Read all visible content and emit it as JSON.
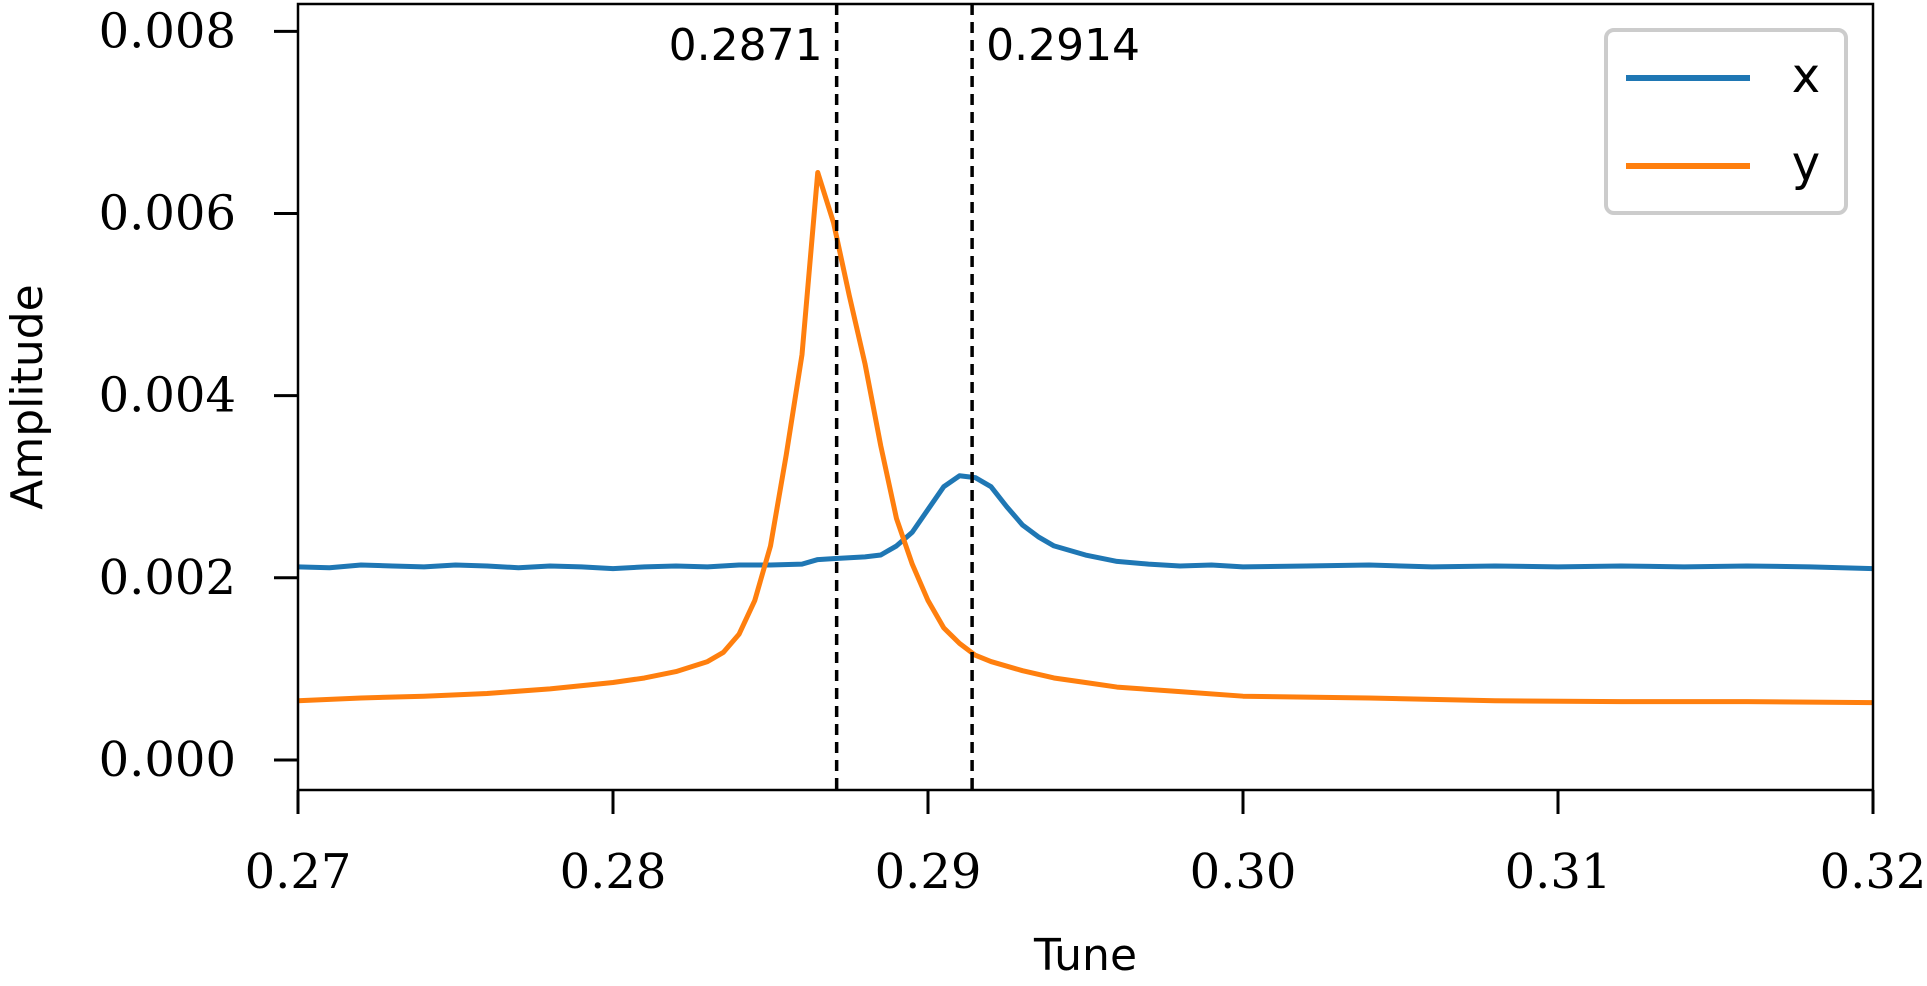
{
  "chart_data": {
    "type": "line",
    "xlabel": "Tune",
    "ylabel": "Amplitude",
    "xlim": [
      0.27,
      0.32
    ],
    "ylim": [
      -0.00033,
      0.0083
    ],
    "x_ticks": [
      "0.27",
      "0.28",
      "0.29",
      "0.30",
      "0.31",
      "0.32"
    ],
    "y_ticks": [
      "0.000",
      "0.002",
      "0.004",
      "0.006",
      "0.008"
    ],
    "x_tick_values": [
      0.27,
      0.28,
      0.29,
      0.3,
      0.31,
      0.32
    ],
    "y_tick_values": [
      0.0,
      0.002,
      0.004,
      0.006,
      0.008
    ],
    "grid": false,
    "legend": {
      "placement": "top-right",
      "entries": [
        "x",
        "y"
      ]
    },
    "vlines": [
      {
        "x": 0.2871,
        "label": "0.2871",
        "label_side": "left",
        "style": "dashed"
      },
      {
        "x": 0.2914,
        "label": "0.2914",
        "label_side": "right",
        "style": "dashed"
      }
    ],
    "series": [
      {
        "name": "x",
        "color": "#1f77b4",
        "x": [
          0.27,
          0.271,
          0.272,
          0.273,
          0.274,
          0.275,
          0.276,
          0.277,
          0.278,
          0.279,
          0.28,
          0.281,
          0.282,
          0.283,
          0.284,
          0.285,
          0.286,
          0.2865,
          0.287,
          0.2875,
          0.288,
          0.2885,
          0.289,
          0.2895,
          0.29,
          0.2905,
          0.291,
          0.2915,
          0.292,
          0.2925,
          0.293,
          0.2935,
          0.294,
          0.295,
          0.296,
          0.297,
          0.298,
          0.299,
          0.3,
          0.302,
          0.304,
          0.306,
          0.308,
          0.31,
          0.312,
          0.314,
          0.316,
          0.318,
          0.32
        ],
        "y": [
          0.00212,
          0.00211,
          0.00214,
          0.00213,
          0.00212,
          0.00214,
          0.00213,
          0.00211,
          0.00213,
          0.00212,
          0.0021,
          0.00212,
          0.00213,
          0.00212,
          0.00214,
          0.00214,
          0.00215,
          0.0022,
          0.00221,
          0.00222,
          0.00223,
          0.00225,
          0.00235,
          0.0025,
          0.00275,
          0.003,
          0.00312,
          0.0031,
          0.003,
          0.00278,
          0.00258,
          0.00245,
          0.00235,
          0.00225,
          0.00218,
          0.00215,
          0.00213,
          0.00214,
          0.00212,
          0.00213,
          0.00214,
          0.00212,
          0.00213,
          0.00212,
          0.00213,
          0.00212,
          0.00213,
          0.00212,
          0.0021
        ]
      },
      {
        "name": "y",
        "color": "#ff7f0e",
        "x": [
          0.27,
          0.272,
          0.274,
          0.276,
          0.278,
          0.28,
          0.281,
          0.282,
          0.283,
          0.2835,
          0.284,
          0.2845,
          0.285,
          0.2855,
          0.286,
          0.2865,
          0.287,
          0.2875,
          0.288,
          0.2885,
          0.289,
          0.2895,
          0.29,
          0.2905,
          0.291,
          0.2915,
          0.292,
          0.293,
          0.294,
          0.295,
          0.296,
          0.298,
          0.3,
          0.304,
          0.308,
          0.312,
          0.316,
          0.32
        ],
        "y": [
          0.00065,
          0.00068,
          0.0007,
          0.00073,
          0.00078,
          0.00085,
          0.0009,
          0.00097,
          0.00108,
          0.00118,
          0.00138,
          0.00175,
          0.00235,
          0.00335,
          0.00445,
          0.00645,
          0.0059,
          0.0051,
          0.00435,
          0.00345,
          0.00265,
          0.00215,
          0.00175,
          0.00145,
          0.00128,
          0.00115,
          0.00108,
          0.00098,
          0.0009,
          0.00085,
          0.0008,
          0.00075,
          0.0007,
          0.00068,
          0.00065,
          0.00064,
          0.00064,
          0.00063
        ]
      }
    ]
  }
}
